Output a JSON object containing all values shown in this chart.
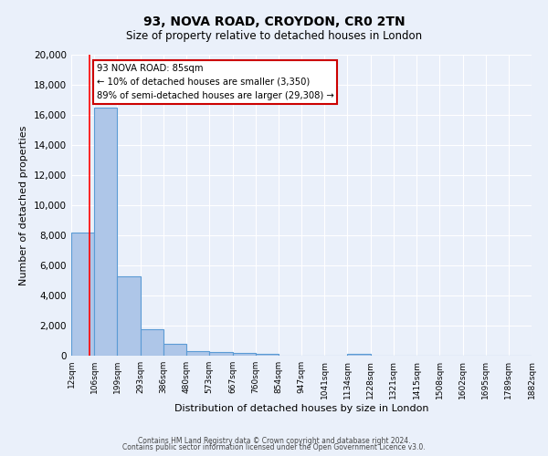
{
  "title": "93, NOVA ROAD, CROYDON, CR0 2TN",
  "subtitle": "Size of property relative to detached houses in London",
  "xlabel": "Distribution of detached houses by size in London",
  "ylabel": "Number of detached properties",
  "bin_labels": [
    "12sqm",
    "106sqm",
    "199sqm",
    "293sqm",
    "386sqm",
    "480sqm",
    "573sqm",
    "667sqm",
    "760sqm",
    "854sqm",
    "947sqm",
    "1041sqm",
    "1134sqm",
    "1228sqm",
    "1321sqm",
    "1415sqm",
    "1508sqm",
    "1602sqm",
    "1695sqm",
    "1789sqm",
    "1882sqm"
  ],
  "bar_heights": [
    8200,
    16500,
    5300,
    1750,
    800,
    280,
    250,
    170,
    120,
    0,
    0,
    0,
    100,
    0,
    0,
    0,
    0,
    0,
    0,
    0
  ],
  "bar_color": "#aec6e8",
  "bar_edge_color": "#5b9bd5",
  "bin_edges": [
    12,
    106,
    199,
    293,
    386,
    480,
    573,
    667,
    760,
    854,
    947,
    1041,
    1134,
    1228,
    1321,
    1415,
    1508,
    1602,
    1695,
    1789,
    1882
  ],
  "property_size": 85,
  "annotation_title": "93 NOVA ROAD: 85sqm",
  "annotation_line1": "← 10% of detached houses are smaller (3,350)",
  "annotation_line2": "89% of semi-detached houses are larger (29,308) →",
  "ylim": [
    0,
    20000
  ],
  "yticks": [
    0,
    2000,
    4000,
    6000,
    8000,
    10000,
    12000,
    14000,
    16000,
    18000,
    20000
  ],
  "footer1": "Contains HM Land Registry data © Crown copyright and database right 2024.",
  "footer2": "Contains public sector information licensed under the Open Government Licence v3.0.",
  "bg_color": "#eaf0fa",
  "plot_bg_color": "#eaf0fa",
  "grid_color": "#ffffff",
  "annotation_box_color": "#ffffff",
  "annotation_box_edge": "#cc0000"
}
